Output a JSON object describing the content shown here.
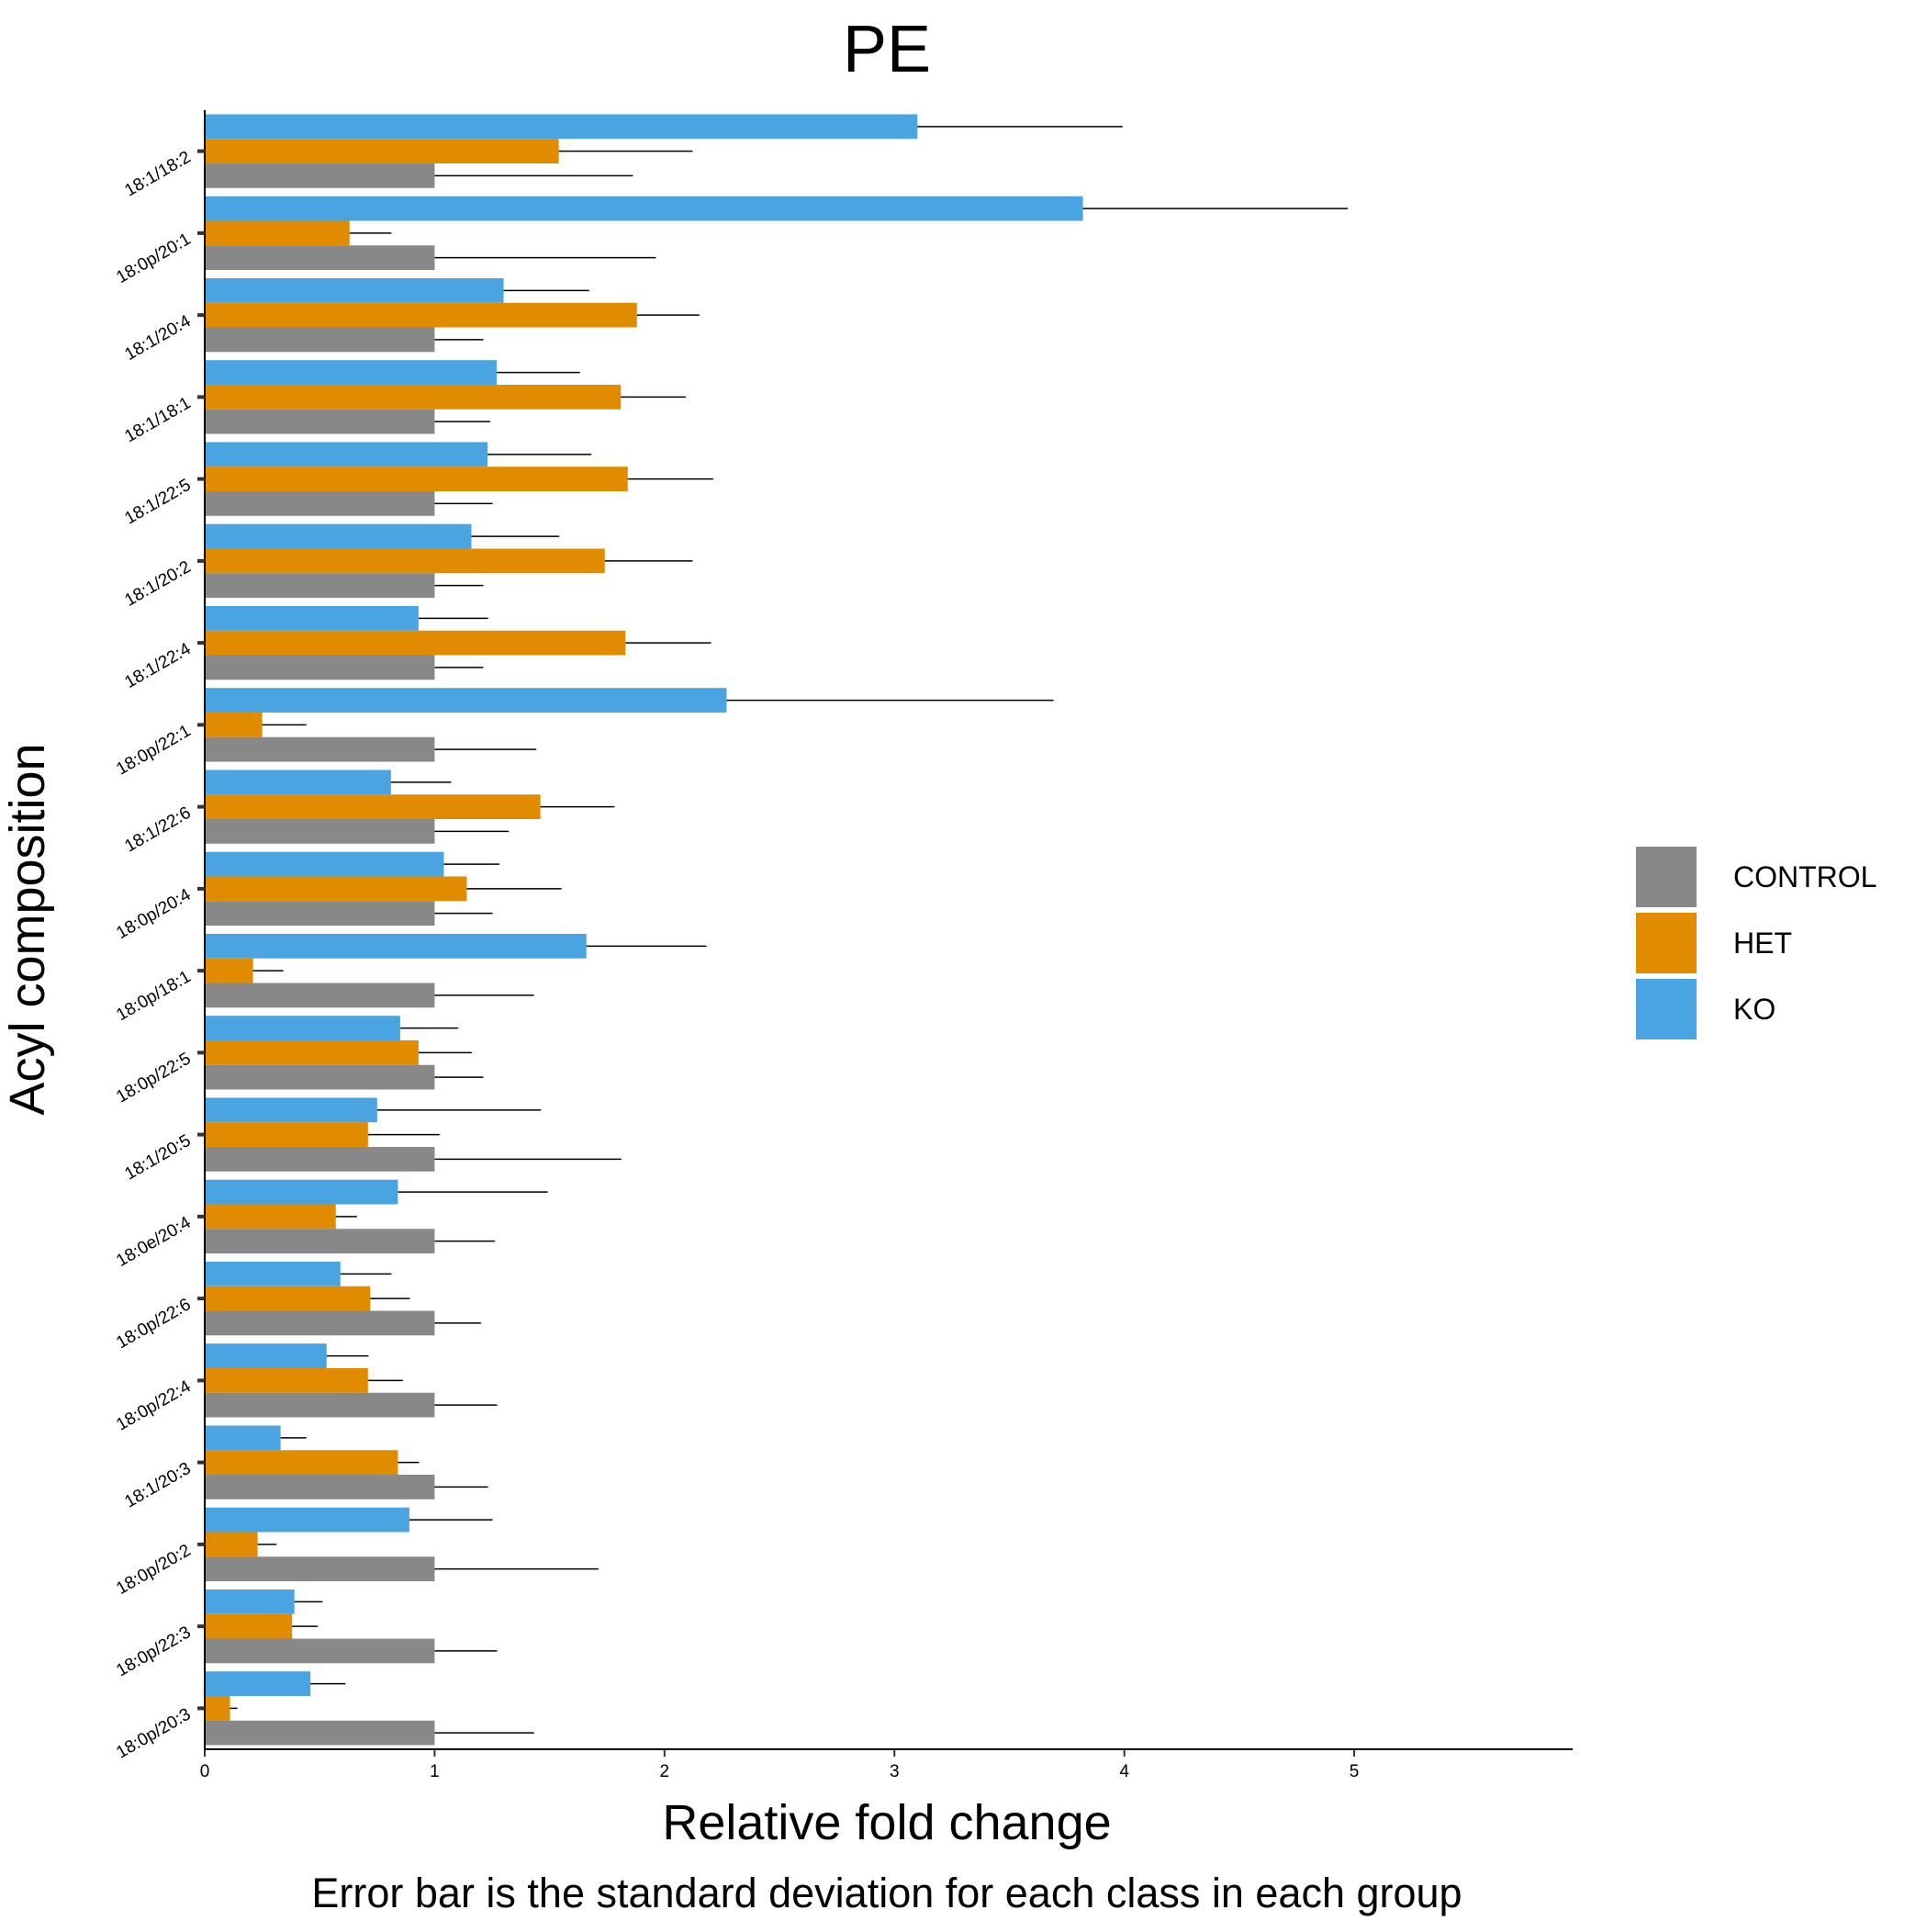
{
  "chart_data": {
    "type": "bar",
    "orientation": "horizontal",
    "title": "PE",
    "xlabel": "Relative fold change",
    "ylabel": "Acyl composition",
    "caption": "Error bar is the standard deviation for each class in each group",
    "xlim": [
      0,
      5.95
    ],
    "x_ticks": [
      0,
      1,
      2,
      3,
      4,
      5
    ],
    "x_tick_labels": [
      "0",
      "1",
      "2",
      "3",
      "4",
      "5"
    ],
    "grid": false,
    "legend_position": "right",
    "categories": [
      "18:1/18:2",
      "18:0p/20:1",
      "18:1/20:4",
      "18:1/18:1",
      "18:1/22:5",
      "18:1/20:2",
      "18:1/22:4",
      "18:0p/22:1",
      "18:1/22:6",
      "18:0p/20:4",
      "18:0p/18:1",
      "18:0p/22:5",
      "18:1/20:5",
      "18:0e/20:4",
      "18:0p/22:6",
      "18:0p/22:4",
      "18:1/20:3",
      "18:0p/20:2",
      "18:0p/22:3",
      "18:0p/20:3"
    ],
    "series": [
      {
        "name": "CONTROL",
        "color": "#888888",
        "values": [
          1,
          1,
          1,
          1,
          1,
          1,
          1,
          1,
          1,
          1,
          1,
          1,
          1,
          1,
          1,
          1,
          1,
          1,
          1,
          1
        ],
        "error": [
          0.86,
          0.96,
          0.21,
          0.24,
          0.25,
          0.21,
          0.21,
          0.44,
          0.32,
          0.25,
          0.43,
          0.21,
          0.81,
          0.26,
          0.2,
          0.27,
          0.23,
          0.71,
          0.27,
          0.43
        ]
      },
      {
        "name": "HET",
        "color": "#E08B00",
        "values": [
          1.54,
          0.63,
          1.88,
          1.81,
          1.84,
          1.74,
          1.83,
          0.25,
          1.46,
          1.14,
          0.21,
          0.93,
          0.71,
          0.57,
          0.72,
          0.71,
          0.84,
          0.23,
          0.38,
          0.11
        ],
        "error": [
          0.58,
          0.18,
          0.27,
          0.28,
          0.37,
          0.38,
          0.37,
          0.19,
          0.32,
          0.41,
          0.13,
          0.23,
          0.31,
          0.09,
          0.17,
          0.15,
          0.09,
          0.08,
          0.11,
          0.03
        ]
      },
      {
        "name": "KO",
        "color": "#4AA4E2",
        "values": [
          3.1,
          3.82,
          1.3,
          1.27,
          1.23,
          1.16,
          0.93,
          2.27,
          0.81,
          1.04,
          1.66,
          0.85,
          0.75,
          0.84,
          0.59,
          0.53,
          0.33,
          0.89,
          0.39,
          0.46
        ],
        "error": [
          0.89,
          1.15,
          0.37,
          0.36,
          0.45,
          0.38,
          0.3,
          1.42,
          0.26,
          0.24,
          0.52,
          0.25,
          0.71,
          0.65,
          0.22,
          0.18,
          0.11,
          0.36,
          0.12,
          0.15
        ]
      }
    ]
  }
}
